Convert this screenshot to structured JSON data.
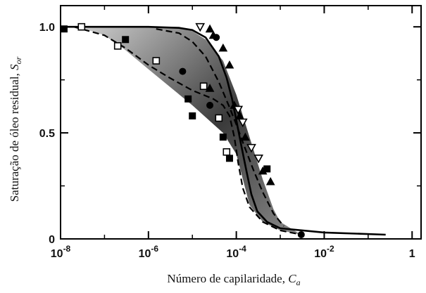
{
  "chart_data": {
    "type": "scatter",
    "xscale": "log",
    "xlabel": "Número de capilaridade, ",
    "xlabel_symbol": "C",
    "xlabel_sub": "a",
    "ylabel": "Saturação de óleo residual, ",
    "ylabel_symbol": "S",
    "ylabel_sub": "or",
    "xlim": [
      1e-08,
      1.6
    ],
    "ylim": [
      0,
      1.1
    ],
    "x_ticks": [
      {
        "value": 1e-08,
        "label": "10",
        "exp": "-8"
      },
      {
        "value": 1e-06,
        "label": "10",
        "exp": "-6"
      },
      {
        "value": 0.0001,
        "label": "10",
        "exp": "-4"
      },
      {
        "value": 0.01,
        "label": "10",
        "exp": "-2"
      },
      {
        "value": 1,
        "label": "1",
        "exp": ""
      }
    ],
    "y_ticks": [
      {
        "value": 0,
        "label": "0"
      },
      {
        "value": 0.5,
        "label": "0.5"
      },
      {
        "value": 1.0,
        "label": "1.0"
      }
    ],
    "band_upper": [
      {
        "x": 5e-06,
        "y": 1.0
      },
      {
        "x": 1e-05,
        "y": 0.98
      },
      {
        "x": 2e-05,
        "y": 0.94
      },
      {
        "x": 5e-05,
        "y": 0.84
      },
      {
        "x": 0.0001,
        "y": 0.68
      },
      {
        "x": 0.0002,
        "y": 0.48
      },
      {
        "x": 0.0004,
        "y": 0.28
      },
      {
        "x": 0.0007,
        "y": 0.14
      },
      {
        "x": 0.001,
        "y": 0.08
      }
    ],
    "band_lower": [
      {
        "x": 2.5e-08,
        "y": 1.0
      },
      {
        "x": 1e-07,
        "y": 0.96
      },
      {
        "x": 3e-07,
        "y": 0.89
      },
      {
        "x": 1e-06,
        "y": 0.8
      },
      {
        "x": 1e-05,
        "y": 0.63
      },
      {
        "x": 5e-05,
        "y": 0.5
      },
      {
        "x": 0.0001,
        "y": 0.4
      },
      {
        "x": 0.00015,
        "y": 0.26
      },
      {
        "x": 0.0002,
        "y": 0.16
      },
      {
        "x": 0.0004,
        "y": 0.08
      },
      {
        "x": 0.001,
        "y": 0.04
      },
      {
        "x": 0.003,
        "y": 0.02
      }
    ],
    "series": [
      {
        "style": "solid",
        "stroke": "#000000",
        "points": [
          {
            "x": 1e-08,
            "y": 1.0
          },
          {
            "x": 1e-06,
            "y": 1.0
          },
          {
            "x": 5e-06,
            "y": 0.995
          },
          {
            "x": 1e-05,
            "y": 0.985
          },
          {
            "x": 2e-05,
            "y": 0.95
          },
          {
            "x": 4e-05,
            "y": 0.86
          },
          {
            "x": 6e-05,
            "y": 0.76
          },
          {
            "x": 8e-05,
            "y": 0.66
          },
          {
            "x": 0.0001,
            "y": 0.56
          },
          {
            "x": 0.00013,
            "y": 0.44
          },
          {
            "x": 0.00017,
            "y": 0.32
          },
          {
            "x": 0.00022,
            "y": 0.21
          },
          {
            "x": 0.0003,
            "y": 0.13
          },
          {
            "x": 0.0005,
            "y": 0.08
          },
          {
            "x": 0.001,
            "y": 0.05
          },
          {
            "x": 0.01,
            "y": 0.03
          },
          {
            "x": 0.25,
            "y": 0.02
          }
        ]
      },
      {
        "style": "dashed",
        "stroke": "#000000",
        "points": [
          {
            "x": 2e-08,
            "y": 1.0
          },
          {
            "x": 1e-07,
            "y": 0.96
          },
          {
            "x": 3e-07,
            "y": 0.9
          },
          {
            "x": 1e-06,
            "y": 0.82
          },
          {
            "x": 3e-06,
            "y": 0.76
          },
          {
            "x": 1e-05,
            "y": 0.7
          },
          {
            "x": 3e-05,
            "y": 0.66
          },
          {
            "x": 5e-05,
            "y": 0.63
          },
          {
            "x": 7e-05,
            "y": 0.58
          },
          {
            "x": 9e-05,
            "y": 0.48
          },
          {
            "x": 0.00011,
            "y": 0.36
          },
          {
            "x": 0.00014,
            "y": 0.24
          },
          {
            "x": 0.0002,
            "y": 0.15
          },
          {
            "x": 0.0004,
            "y": 0.08
          },
          {
            "x": 0.001,
            "y": 0.04
          },
          {
            "x": 0.003,
            "y": 0.02
          }
        ]
      },
      {
        "style": "dashed",
        "stroke": "#000000",
        "points": [
          {
            "x": 1.5e-06,
            "y": 0.99
          },
          {
            "x": 5e-06,
            "y": 0.97
          },
          {
            "x": 1e-05,
            "y": 0.93
          },
          {
            "x": 2e-05,
            "y": 0.86
          },
          {
            "x": 4e-05,
            "y": 0.74
          },
          {
            "x": 7e-05,
            "y": 0.62
          },
          {
            "x": 0.0001,
            "y": 0.54
          },
          {
            "x": 0.00015,
            "y": 0.44
          },
          {
            "x": 0.00025,
            "y": 0.32
          },
          {
            "x": 0.0004,
            "y": 0.22
          },
          {
            "x": 0.0007,
            "y": 0.12
          },
          {
            "x": 0.0012,
            "y": 0.06
          }
        ]
      }
    ],
    "markers": [
      {
        "shape": "square-filled",
        "x": 1.2e-08,
        "y": 0.99
      },
      {
        "shape": "square-open",
        "x": 3e-08,
        "y": 1.0
      },
      {
        "shape": "square-open",
        "x": 2e-07,
        "y": 0.91
      },
      {
        "shape": "square-filled",
        "x": 3e-07,
        "y": 0.94
      },
      {
        "shape": "square-open",
        "x": 1.5e-06,
        "y": 0.84
      },
      {
        "shape": "circle-filled",
        "x": 6e-06,
        "y": 0.79
      },
      {
        "shape": "square-filled",
        "x": 8e-06,
        "y": 0.66
      },
      {
        "shape": "square-filled",
        "x": 1e-05,
        "y": 0.58
      },
      {
        "shape": "circle-filled",
        "x": 2.5e-05,
        "y": 0.63
      },
      {
        "shape": "square-open",
        "x": 1.8e-05,
        "y": 0.72
      },
      {
        "shape": "triangle-filled",
        "x": 2.5e-05,
        "y": 0.71
      },
      {
        "shape": "square-open",
        "x": 4e-05,
        "y": 0.57
      },
      {
        "shape": "square-filled",
        "x": 5e-05,
        "y": 0.48
      },
      {
        "shape": "square-open",
        "x": 6e-05,
        "y": 0.41
      },
      {
        "shape": "square-filled",
        "x": 7e-05,
        "y": 0.38
      },
      {
        "shape": "triangle-open-down",
        "x": 1.5e-05,
        "y": 1.0
      },
      {
        "shape": "triangle-filled",
        "x": 2.5e-05,
        "y": 0.99
      },
      {
        "shape": "triangle-filled",
        "x": 3e-05,
        "y": 0.96
      },
      {
        "shape": "circle-filled",
        "x": 3.5e-05,
        "y": 0.95
      },
      {
        "shape": "triangle-filled",
        "x": 5e-05,
        "y": 0.9
      },
      {
        "shape": "triangle-filled",
        "x": 7e-05,
        "y": 0.82
      },
      {
        "shape": "triangle-filled",
        "x": 9e-05,
        "y": 0.63
      },
      {
        "shape": "triangle-open-down",
        "x": 0.00011,
        "y": 0.61
      },
      {
        "shape": "triangle-filled",
        "x": 0.00012,
        "y": 0.58
      },
      {
        "shape": "triangle-open-down",
        "x": 0.00014,
        "y": 0.55
      },
      {
        "shape": "triangle-filled",
        "x": 0.00016,
        "y": 0.48
      },
      {
        "shape": "triangle-open-down",
        "x": 0.00022,
        "y": 0.43
      },
      {
        "shape": "triangle-open-down",
        "x": 0.00032,
        "y": 0.38
      },
      {
        "shape": "triangle-filled",
        "x": 0.0004,
        "y": 0.32
      },
      {
        "shape": "square-filled",
        "x": 0.0005,
        "y": 0.33
      },
      {
        "shape": "triangle-filled",
        "x": 0.0006,
        "y": 0.27
      },
      {
        "shape": "circle-filled",
        "x": 0.003,
        "y": 0.02
      }
    ]
  }
}
